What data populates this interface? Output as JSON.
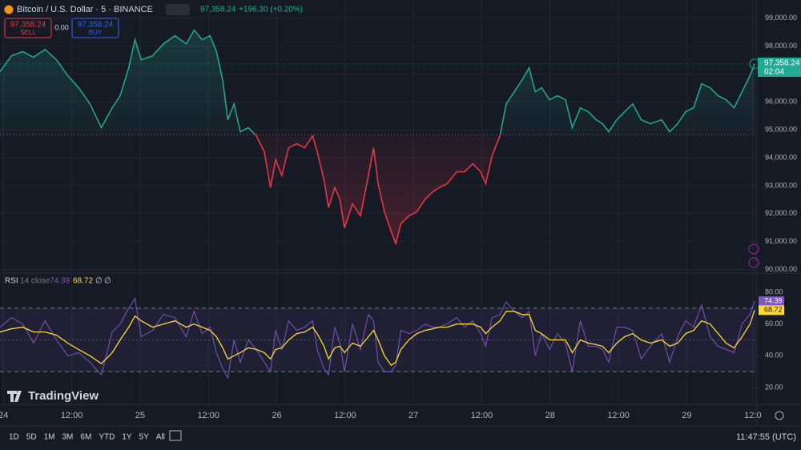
{
  "header": {
    "symbol": "Bitcoin / U.S. Dollar · 5 · BINANCE",
    "price": "97,358.24",
    "change": "+196.30 (+0.20%)"
  },
  "trade": {
    "sell_price": "97,358.24",
    "sell": "SELL",
    "spread": "0.00",
    "buy_price": "97,358.24",
    "buy": "BUY"
  },
  "watermark": "TradingView",
  "toolbar": {
    "ranges": [
      "1D",
      "5D",
      "1M",
      "3M",
      "6M",
      "YTD",
      "1Y",
      "5Y",
      "All"
    ],
    "clock": "11:47:55 (UTC)"
  },
  "chart_data": [
    {
      "type": "line",
      "color_up": "#22ab94",
      "color_down": "#f23645",
      "baseline": 94830,
      "last_price_label": "97,358.24",
      "countdown": "02:04",
      "x": [
        -0.6,
        1.4,
        3.4,
        5.3,
        7.3,
        9.3,
        11.3,
        13.2,
        15.2,
        17.2,
        19.1,
        20.5,
        22.0,
        23.1,
        24.2,
        26.2,
        28.1,
        30.1,
        32.1,
        33.5,
        34.9,
        36.3,
        37.4,
        38.5,
        39.4,
        40.5,
        41.6,
        43.0,
        44.4,
        45.8,
        46.9,
        47.8,
        48.9,
        50.1,
        51.5,
        52.9,
        54.3,
        55.1,
        56.3,
        57.1,
        58.2,
        59.1,
        59.9,
        61.3,
        62.7,
        64.1,
        65.0,
        65.8,
        66.9,
        68.1,
        68.9,
        69.8,
        71.2,
        72.6,
        74.0,
        75.4,
        76.5,
        77.9,
        79.6,
        81.0,
        82.4,
        83.8,
        84.7,
        85.8,
        87.2,
        88.3,
        89.7,
        91.1,
        92.3,
        93.4,
        94.5,
        95.9,
        97.3,
        98.7,
        99.9,
        101.3,
        102.7,
        104.1,
        105.2,
        106.3,
        107.7,
        109.1,
        110.5,
        112.0,
        113.6,
        115.6,
        117.0,
        118.4,
        119.8,
        121.2,
        122.6,
        124.1,
        125.5,
        126.9,
        128.3,
        129.7,
        131.1,
        131.9
      ],
      "values": [
        97080,
        97650,
        97800,
        97600,
        97880,
        97510,
        96940,
        96510,
        95930,
        95080,
        95790,
        96220,
        97220,
        98230,
        97510,
        97650,
        98080,
        98370,
        98080,
        98570,
        98230,
        98370,
        97800,
        96790,
        95360,
        95930,
        94930,
        95080,
        94790,
        94220,
        92930,
        93930,
        93360,
        94360,
        94500,
        94360,
        94790,
        94220,
        93210,
        92210,
        92930,
        92500,
        91490,
        92350,
        91920,
        93360,
        94360,
        93070,
        92070,
        91350,
        90920,
        91640,
        91920,
        92070,
        92500,
        92780,
        92930,
        93070,
        93500,
        93500,
        93790,
        93500,
        93070,
        94070,
        94790,
        95930,
        96360,
        96790,
        97220,
        96360,
        96510,
        96080,
        96220,
        96080,
        95080,
        95790,
        95650,
        95360,
        95220,
        94930,
        95360,
        95650,
        95930,
        95360,
        95220,
        95360,
        94930,
        95220,
        95650,
        95790,
        96650,
        96510,
        96220,
        96080,
        95790,
        96360,
        96940,
        97358.24
      ],
      "xlim": [
        -0.6,
        131.9
      ],
      "xticks": [
        {
          "value": 0,
          "label": "24"
        },
        {
          "value": 12,
          "label": "12:00"
        },
        {
          "value": 24,
          "label": "25"
        },
        {
          "value": 36,
          "label": "12:00"
        },
        {
          "value": 48,
          "label": "26"
        },
        {
          "value": 60,
          "label": "12:00"
        },
        {
          "value": 72,
          "label": "27"
        },
        {
          "value": 84,
          "label": "12:00"
        },
        {
          "value": 96,
          "label": "28"
        },
        {
          "value": 108,
          "label": "12:00"
        },
        {
          "value": 120,
          "label": "29"
        },
        {
          "value": 131.6,
          "label": "12:0"
        }
      ],
      "ylim": [
        89900,
        99650
      ],
      "yticks": [
        {
          "value": 90000,
          "label": "90,000.00"
        },
        {
          "value": 91000,
          "label": "91,000.00"
        },
        {
          "value": 92000,
          "label": "92,000.00"
        },
        {
          "value": 93000,
          "label": "93,000.00"
        },
        {
          "value": 94000,
          "label": "94,000.00"
        },
        {
          "value": 95000,
          "label": "95,000.00"
        },
        {
          "value": 96000,
          "label": "96,000.00"
        },
        {
          "value": 97000,
          "label": "97,000.00"
        },
        {
          "value": 98000,
          "label": "98,000.00"
        },
        {
          "value": 99000,
          "label": "99,000.00"
        }
      ]
    },
    {
      "type": "line",
      "title": "RSI",
      "params": "14 close",
      "legend_values": [
        "74.39",
        "68.72",
        "∅",
        "∅"
      ],
      "band_color": "#7e57c2",
      "bands": [
        30,
        70
      ],
      "midline": 50,
      "x": [
        -0.6,
        1.4,
        3.4,
        5.3,
        7.3,
        9.3,
        11.3,
        13.2,
        15.2,
        17.2,
        19.1,
        20.5,
        22.0,
        23.1,
        24.2,
        26.2,
        28.1,
        30.1,
        32.1,
        33.5,
        34.9,
        36.3,
        37.4,
        38.5,
        39.4,
        40.5,
        41.6,
        43.0,
        44.4,
        45.8,
        46.9,
        47.8,
        48.9,
        50.1,
        51.5,
        52.9,
        54.3,
        55.1,
        56.3,
        57.1,
        58.2,
        59.1,
        59.9,
        61.3,
        62.7,
        64.1,
        65.0,
        65.8,
        66.9,
        68.1,
        68.9,
        69.8,
        71.2,
        72.6,
        74.0,
        75.4,
        76.5,
        77.9,
        79.6,
        81.0,
        82.4,
        83.8,
        84.7,
        85.8,
        87.2,
        88.3,
        89.7,
        91.1,
        92.3,
        93.4,
        94.5,
        95.9,
        97.3,
        98.7,
        99.9,
        101.3,
        102.7,
        104.1,
        105.2,
        106.3,
        107.7,
        109.1,
        110.5,
        112.0,
        113.6,
        115.6,
        117.0,
        118.4,
        119.8,
        121.2,
        122.6,
        124.1,
        125.5,
        126.9,
        128.3,
        129.7,
        131.1,
        131.9
      ],
      "series": [
        {
          "color": "#7e57c2",
          "tag": "74.39",
          "values": [
            58,
            64,
            60,
            48,
            62,
            50,
            40,
            42,
            36,
            28,
            55,
            60,
            70,
            76,
            52,
            56,
            66,
            64,
            52,
            68,
            54,
            58,
            42,
            32,
            26,
            50,
            36,
            50,
            44,
            36,
            30,
            56,
            44,
            62,
            56,
            58,
            62,
            44,
            32,
            28,
            58,
            48,
            30,
            60,
            44,
            66,
            62,
            36,
            30,
            30,
            34,
            56,
            54,
            56,
            60,
            58,
            58,
            60,
            64,
            58,
            62,
            54,
            46,
            64,
            66,
            74,
            68,
            64,
            68,
            40,
            54,
            44,
            54,
            48,
            30,
            62,
            46,
            46,
            44,
            36,
            58,
            58,
            56,
            38,
            46,
            54,
            36,
            52,
            62,
            58,
            72,
            52,
            46,
            44,
            42,
            60,
            66,
            74.39
          ]
        },
        {
          "color": "#fdd835",
          "tag": "68.72",
          "values": [
            55,
            57,
            58,
            55,
            55,
            53,
            48,
            44,
            40,
            35,
            42,
            50,
            58,
            65,
            62,
            58,
            60,
            62,
            58,
            60,
            58,
            56,
            52,
            45,
            38,
            40,
            42,
            45,
            44,
            42,
            38,
            44,
            45,
            50,
            54,
            55,
            58,
            54,
            46,
            38,
            45,
            46,
            42,
            48,
            46,
            52,
            56,
            50,
            40,
            34,
            36,
            44,
            50,
            54,
            56,
            57,
            58,
            58,
            60,
            60,
            60,
            58,
            54,
            58,
            62,
            68,
            68,
            66,
            66,
            56,
            54,
            50,
            50,
            50,
            42,
            50,
            48,
            47,
            46,
            42,
            48,
            52,
            54,
            50,
            48,
            50,
            46,
            48,
            54,
            56,
            62,
            60,
            54,
            48,
            45,
            52,
            60,
            68.72
          ]
        }
      ],
      "xlim": [
        -0.6,
        131.9
      ],
      "ylim": [
        9.4,
        91.6
      ],
      "yticks": [
        {
          "value": 20,
          "label": "20.00"
        },
        {
          "value": 40,
          "label": "40.00"
        },
        {
          "value": 60,
          "label": "60.00"
        },
        {
          "value": 80,
          "label": "80.00"
        }
      ]
    }
  ]
}
